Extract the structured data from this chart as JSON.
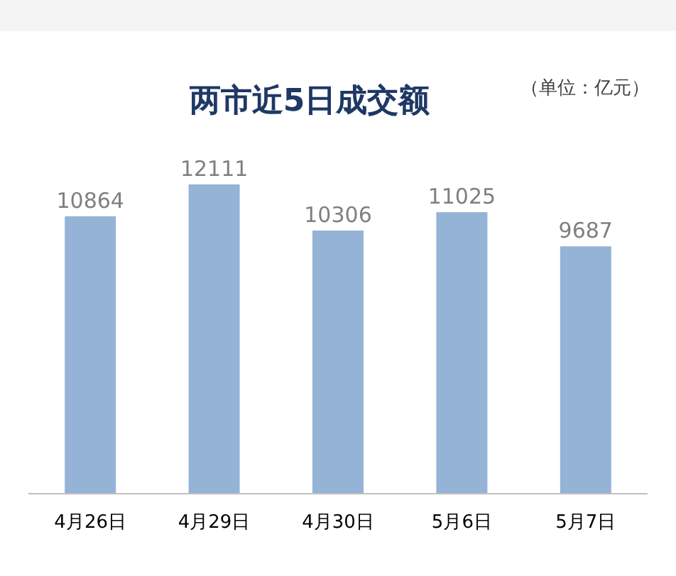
{
  "chart_data": {
    "type": "bar",
    "title": "两市近5日成交额",
    "annotations": [
      "（单位：亿元）"
    ],
    "categories": [
      "4月26日",
      "4月29日",
      "4月30日",
      "5月6日",
      "5月7日"
    ],
    "values": [
      10864,
      12111,
      10306,
      11025,
      9687
    ],
    "color": "#95b3d7",
    "data_labels": true
  }
}
